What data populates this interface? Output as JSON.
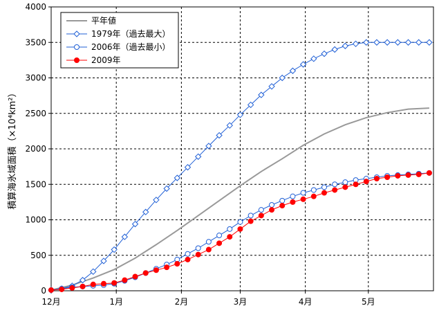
{
  "chart_data": {
    "type": "line",
    "ylabel": "積算海氷域面積（×10⁴km²）",
    "ylim": [
      0,
      4000
    ],
    "yticks": [
      "0",
      "500",
      "1000",
      "1500",
      "2000",
      "2500",
      "3000",
      "3500",
      "4000"
    ],
    "xlim": [
      0,
      182
    ],
    "xticks": [
      {
        "label": "12月",
        "x": 0
      },
      {
        "label": "1月",
        "x": 31
      },
      {
        "label": "2月",
        "x": 62
      },
      {
        "label": "3月",
        "x": 90
      },
      {
        "label": "4月",
        "x": 121
      },
      {
        "label": "5月",
        "x": 151
      }
    ],
    "grid": true,
    "legend_position": "top-left",
    "series": [
      {
        "name": "平年値",
        "color": "#999999",
        "marker": "none",
        "x": [
          0,
          10,
          20,
          30,
          40,
          50,
          60,
          70,
          80,
          90,
          100,
          110,
          120,
          130,
          140,
          150,
          160,
          170,
          180
        ],
        "y": [
          10,
          80,
          180,
          300,
          460,
          650,
          850,
          1060,
          1270,
          1480,
          1680,
          1860,
          2050,
          2210,
          2340,
          2440,
          2510,
          2560,
          2575
        ]
      },
      {
        "name": "1979年（過去最大）",
        "color": "#1f5fd6",
        "marker": "diamond-open",
        "x": [
          0,
          5,
          10,
          15,
          20,
          25,
          30,
          35,
          40,
          45,
          50,
          55,
          60,
          65,
          70,
          75,
          80,
          85,
          90,
          95,
          100,
          105,
          110,
          115,
          120,
          125,
          130,
          135,
          140,
          145,
          150,
          155,
          160,
          165,
          170,
          175,
          180
        ],
        "y": [
          10,
          30,
          70,
          150,
          270,
          420,
          580,
          760,
          940,
          1110,
          1280,
          1440,
          1590,
          1740,
          1890,
          2040,
          2190,
          2330,
          2480,
          2620,
          2760,
          2880,
          3000,
          3100,
          3190,
          3270,
          3340,
          3400,
          3450,
          3480,
          3500,
          3500,
          3500,
          3500,
          3500,
          3500,
          3500
        ]
      },
      {
        "name": "2006年（過去最小）",
        "color": "#1f5fd6",
        "marker": "circle-open",
        "x": [
          0,
          5,
          10,
          15,
          20,
          25,
          30,
          35,
          40,
          45,
          50,
          55,
          60,
          65,
          70,
          75,
          80,
          85,
          90,
          95,
          100,
          105,
          110,
          115,
          120,
          125,
          130,
          135,
          140,
          145,
          150,
          155,
          160,
          165,
          170,
          175,
          180
        ],
        "y": [
          10,
          30,
          50,
          60,
          70,
          80,
          100,
          140,
          190,
          250,
          310,
          370,
          440,
          520,
          600,
          690,
          780,
          870,
          970,
          1060,
          1140,
          1210,
          1270,
          1330,
          1380,
          1420,
          1460,
          1500,
          1530,
          1560,
          1580,
          1600,
          1620,
          1630,
          1640,
          1650,
          1660
        ]
      },
      {
        "name": "2009年",
        "color": "#ff0000",
        "marker": "circle-filled",
        "x": [
          0,
          5,
          10,
          15,
          20,
          25,
          30,
          35,
          40,
          45,
          50,
          55,
          60,
          65,
          70,
          75,
          80,
          85,
          90,
          95,
          100,
          105,
          110,
          115,
          120,
          125,
          130,
          135,
          140,
          145,
          150,
          155,
          160,
          165,
          170,
          175,
          180
        ],
        "y": [
          10,
          20,
          40,
          60,
          90,
          100,
          110,
          150,
          200,
          250,
          290,
          330,
          380,
          440,
          510,
          580,
          670,
          760,
          870,
          980,
          1060,
          1140,
          1200,
          1250,
          1290,
          1330,
          1380,
          1420,
          1460,
          1500,
          1540,
          1580,
          1600,
          1620,
          1630,
          1640,
          1660
        ]
      }
    ]
  }
}
